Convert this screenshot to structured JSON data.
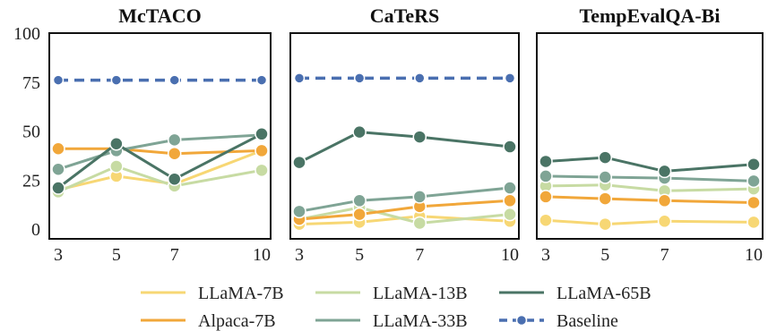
{
  "chart_data": {
    "type": "line",
    "x": [
      3,
      5,
      7,
      10
    ],
    "ylim": [
      -5,
      100
    ],
    "yticks": [
      0,
      25,
      50,
      75,
      100
    ],
    "colors": {
      "LLaMA-7B": "#f7d774",
      "Alpaca-7B": "#f1a73a",
      "LLaMA-13B": "#c7dba3",
      "LLaMA-33B": "#7fa495",
      "LLaMA-65B": "#4a7465",
      "Baseline": "#4a6fb0"
    },
    "legend": [
      "LLaMA-7B",
      "LLaMA-13B",
      "LLaMA-65B",
      "Alpaca-7B",
      "LLaMA-33B",
      "Baseline"
    ],
    "panels": [
      {
        "title": "McTACO",
        "series": [
          {
            "name": "LLaMA-7B",
            "values": [
              20,
              27,
              23,
              40
            ]
          },
          {
            "name": "LLaMA-13B",
            "values": [
              19,
              32,
              22,
              30
            ]
          },
          {
            "name": "Alpaca-7B",
            "values": [
              41,
              41,
              38.5,
              40
            ]
          },
          {
            "name": "LLaMA-33B",
            "values": [
              30.5,
              40,
              45.5,
              48
            ]
          },
          {
            "name": "LLaMA-65B",
            "values": [
              21,
              43.5,
              25.5,
              48.5
            ]
          },
          {
            "name": "Baseline",
            "values": [
              76,
              76,
              76,
              76
            ]
          }
        ]
      },
      {
        "title": "CaTeRS",
        "series": [
          {
            "name": "LLaMA-7B",
            "values": [
              2.5,
              3.5,
              6.5,
              4
            ]
          },
          {
            "name": "LLaMA-13B",
            "values": [
              5,
              11,
              3,
              7.5
            ]
          },
          {
            "name": "Alpaca-7B",
            "values": [
              5,
              7.5,
              11.5,
              14.5
            ]
          },
          {
            "name": "LLaMA-33B",
            "values": [
              9,
              14.5,
              16.5,
              21
            ]
          },
          {
            "name": "LLaMA-65B",
            "values": [
              34,
              49.5,
              47,
              42
            ]
          },
          {
            "name": "Baseline",
            "values": [
              77,
              77,
              77,
              77
            ]
          }
        ]
      },
      {
        "title": "TempEvalQA-Bi",
        "series": [
          {
            "name": "LLaMA-7B",
            "values": [
              4.5,
              2.5,
              4,
              3.5
            ]
          },
          {
            "name": "LLaMA-13B",
            "values": [
              22,
              22.5,
              19.5,
              20.5
            ]
          },
          {
            "name": "Alpaca-7B",
            "values": [
              16.5,
              15.5,
              14.5,
              13.5
            ]
          },
          {
            "name": "LLaMA-33B",
            "values": [
              27,
              26.5,
              26,
              24.5
            ]
          },
          {
            "name": "LLaMA-65B",
            "values": [
              34.5,
              36.5,
              29.5,
              33
            ]
          }
        ]
      }
    ]
  }
}
